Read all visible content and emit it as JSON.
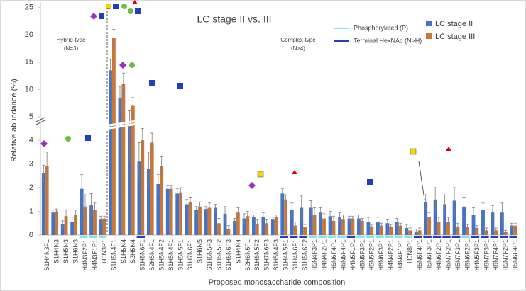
{
  "chart_data": {
    "type": "bar",
    "title": "LC stage II vs. III",
    "ylabel": "Relative abundance (%)",
    "xlabel": "Proposed monosaccharide composition",
    "annotations": [
      [
        "Hybrid-type",
        "(N=3)"
      ],
      [
        "Complex-type",
        "(N≥4)"
      ]
    ],
    "y_segments": [
      {
        "ylim": [
          0,
          4.6
        ]
      },
      {
        "ylim": [
          4.6,
          26
        ]
      }
    ],
    "yticks": [
      0,
      1,
      2,
      3,
      4,
      5,
      10,
      15,
      20,
      25
    ],
    "legend": "top-right",
    "underline_legend": [
      {
        "name": "Phosphorylated (P)",
        "color": "#7fe3f0"
      },
      {
        "name": "Terminal HexNAc (N>H)",
        "color": "#1f3fbf"
      }
    ],
    "categories": [
      "S1H4N3F1",
      "S1H4N3",
      "S1H5N3",
      "S1H6N3",
      "H4N3F2P1",
      "H4N3F1P1",
      "H6N3P1",
      "S1H5N4F1",
      "S1H5N4",
      "S2H5N4",
      "S1H5N6F1",
      "S2H5N4F1",
      "S1H5N4F2",
      "S1H5N4F1",
      "S1H5N5F1",
      "S1H7N6F1",
      "S1H6N5",
      "S1H6N5F3",
      "S1H5N5F2",
      "S1H6N6F3",
      "S1H4N4",
      "S2H6N5F1",
      "S1H6N5F2",
      "S1H7N6F3",
      "S1H5N4F3",
      "S1H4N5F1",
      "S1H4N6F1",
      "S1H5N6F2",
      "H5N4F3P1",
      "H4N4F2P1",
      "H6N6F4P1",
      "H6N5F4P1",
      "H4N5F1P1",
      "H5N5F3P1",
      "H5N5F2P1",
      "H6N6F3P1",
      "H4N4F2P1",
      "H4N4F1P1",
      "H9N8P1",
      "H5N6F4P1",
      "H5N6F3P1",
      "H4N6F2P1",
      "H5N7F2P1",
      "H5N7F3P1",
      "H6N6F2P1",
      "H4N5F3P1",
      "H6N7F3P1",
      "H6N7F4P1",
      "H5N7F2P1",
      "H5N6F4P1"
    ],
    "series": [
      {
        "name": "LC stage II",
        "color": "#4472c4",
        "values": [
          2.6,
          0.95,
          0.45,
          0.55,
          1.95,
          1.25,
          0.65,
          13.5,
          8.5,
          4.6,
          3.1,
          2.8,
          2.15,
          1.95,
          1.75,
          1.3,
          1.05,
          1.1,
          1.15,
          0.9,
          0.6,
          0.7,
          0.75,
          0.75,
          0.65,
          1.75,
          1.05,
          1.15,
          1.15,
          0.95,
          0.8,
          0.75,
          0.7,
          0.7,
          0.55,
          0.55,
          0.5,
          0.55,
          0.3,
          0.15,
          1.4,
          1.5,
          1.3,
          1.45,
          1.2,
          0.85,
          1.05,
          0.95,
          0.95,
          0.4
        ],
        "errors": [
          0.35,
          0.1,
          0.15,
          0.2,
          0.6,
          0.5,
          0.15,
          2,
          2,
          1.5,
          0.8,
          0.7,
          0.4,
          0.15,
          0.2,
          0.2,
          0.15,
          0.1,
          0.15,
          0.3,
          0.1,
          0.2,
          0.1,
          0.2,
          0.1,
          0.2,
          0.3,
          0.5,
          0.3,
          0.2,
          0.2,
          0.2,
          0.1,
          0.15,
          0.2,
          0.2,
          0.15,
          0.15,
          0.15,
          0.1,
          0.3,
          0.5,
          0.4,
          0.55,
          0.4,
          0.3,
          0.3,
          0.3,
          0.4,
          0.1
        ]
      },
      {
        "name": "LC stage III",
        "color": "#c8773a",
        "values": [
          2.9,
          1.0,
          0.8,
          0.85,
          1.2,
          1.05,
          0.7,
          19.5,
          11,
          7,
          4.0,
          3.9,
          2.9,
          1.95,
          1.8,
          1.4,
          1.2,
          1.15,
          0.5,
          0.25,
          0.95,
          0.8,
          0.45,
          0.5,
          0.75,
          1.5,
          0.4,
          0.35,
          0.85,
          0.7,
          0.6,
          0.65,
          0.7,
          0.6,
          0.35,
          0.4,
          0.35,
          0.4,
          0.2,
          0.2,
          0.75,
          0.55,
          0.55,
          0.35,
          0.35,
          0.3,
          0.2,
          0.2,
          0.15,
          0.4
        ],
        "errors": [
          0.6,
          0.1,
          0.25,
          0.2,
          0.5,
          0.3,
          0.1,
          1.5,
          2,
          1.5,
          0.5,
          0.4,
          0.4,
          0.15,
          0.2,
          0.2,
          0.2,
          0.2,
          0.2,
          0.15,
          0.2,
          0.2,
          0.2,
          0.15,
          0.1,
          0.2,
          0.15,
          0.1,
          0.3,
          0.2,
          0.2,
          0.2,
          0.1,
          0.1,
          0.1,
          0.1,
          0.1,
          0.1,
          0.1,
          0.1,
          0.2,
          0.2,
          0.2,
          0.15,
          0.1,
          0.1,
          0.1,
          0.1,
          0.05,
          0.1
        ]
      }
    ]
  }
}
